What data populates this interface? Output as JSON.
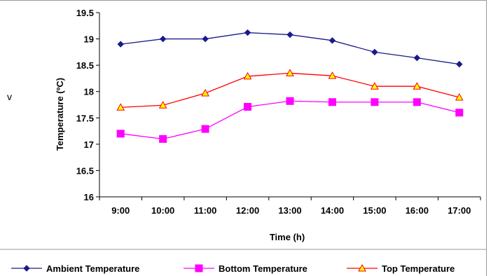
{
  "stray_text": "v",
  "chart_data": {
    "type": "line",
    "title": "",
    "xlabel": "Time (h)",
    "ylabel": "Temperature (ºC)",
    "ylim": [
      16,
      19.5
    ],
    "yticks": [
      "16",
      "16.5",
      "17",
      "17.5",
      "18",
      "18.5",
      "19",
      "19.5"
    ],
    "ytick_values": [
      16,
      16.5,
      17,
      17.5,
      18,
      18.5,
      19,
      19.5
    ],
    "categories": [
      "9:00",
      "10:00",
      "11:00",
      "12:00",
      "13:00",
      "14:00",
      "15:00",
      "16:00",
      "17:00"
    ],
    "grid": false,
    "legend_position": "bottom",
    "series": [
      {
        "name": "Ambient Temperature",
        "color": "#1a1a8c",
        "marker": "diamond",
        "values": [
          18.9,
          19.0,
          19.0,
          19.12,
          19.08,
          18.97,
          18.75,
          18.64,
          18.52
        ]
      },
      {
        "name": "Bottom Temperature",
        "color": "#ff00ff",
        "marker": "square",
        "values": [
          17.2,
          17.1,
          17.29,
          17.71,
          17.82,
          17.8,
          17.8,
          17.8,
          17.6
        ]
      },
      {
        "name": "Top Temperature",
        "color": "#ff0000",
        "marker": "triangle",
        "marker_fill": "#ffff00",
        "values": [
          17.7,
          17.74,
          17.97,
          18.29,
          18.35,
          18.3,
          18.1,
          18.1,
          17.89
        ]
      }
    ]
  }
}
